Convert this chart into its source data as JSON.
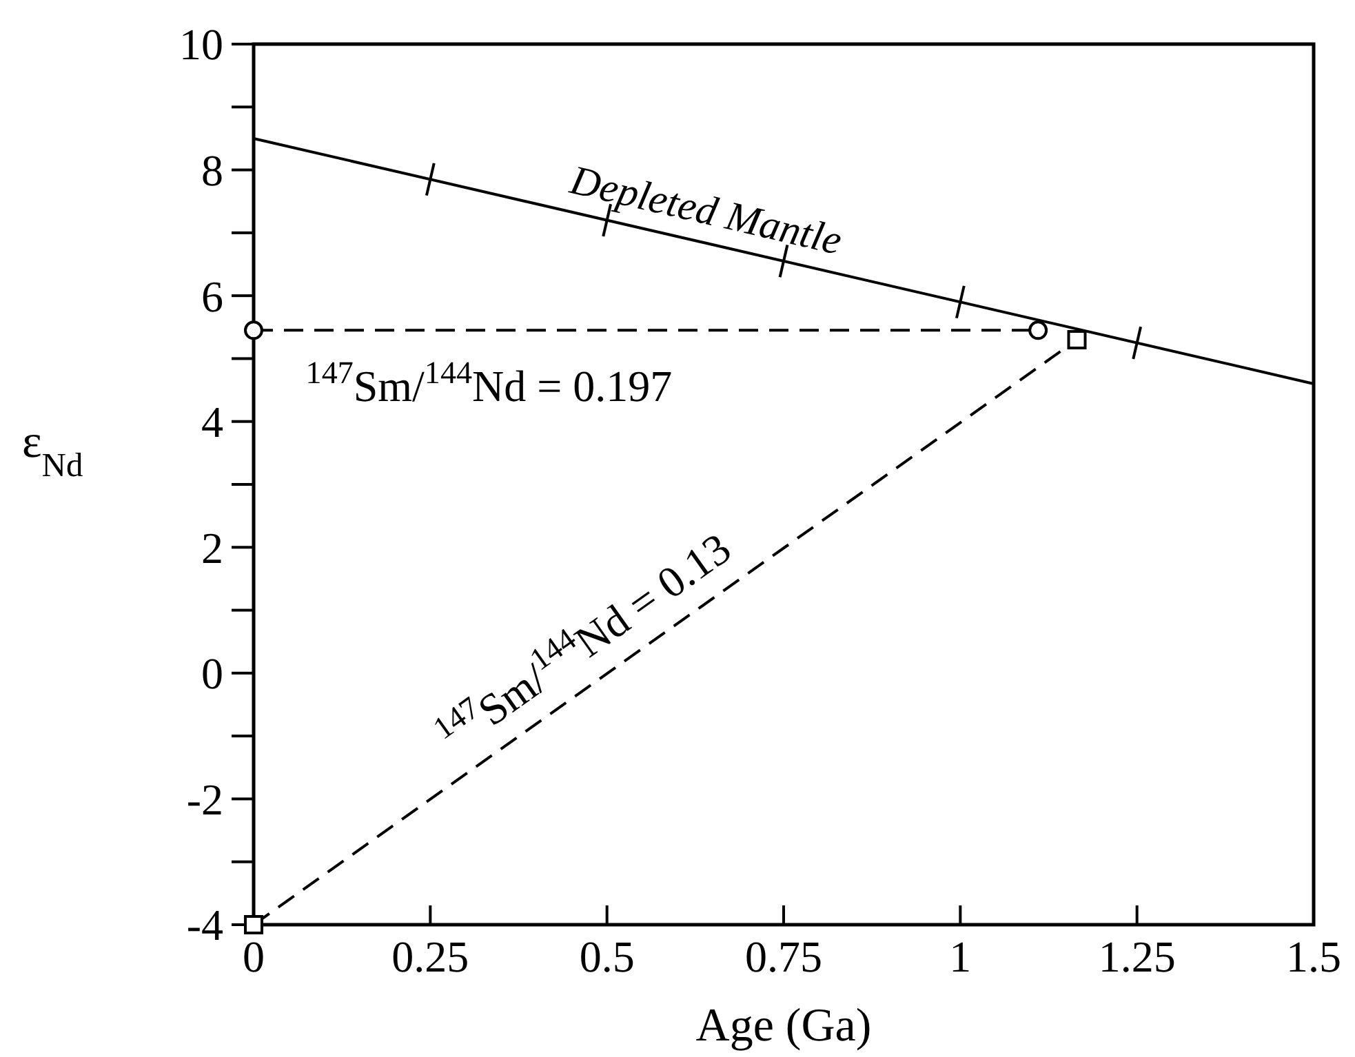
{
  "chart_data": {
    "type": "line",
    "xlabel": "Age (Ga)",
    "ylabel": "ε$_{Nd}$",
    "xlim": [
      0,
      1.5
    ],
    "xticks": [
      0,
      0.25,
      0.5,
      0.75,
      1,
      1.25,
      1.5
    ],
    "ylim": [
      -4,
      10
    ],
    "yticks": [
      -4,
      {
        "value": -3,
        "label": null
      },
      -2,
      {
        "value": -1,
        "label": null
      },
      0,
      {
        "value": 1,
        "label": null
      },
      2,
      {
        "value": 3,
        "label": null
      },
      4,
      {
        "value": 5,
        "label": null
      },
      6,
      {
        "value": 7,
        "label": null
      },
      8,
      {
        "value": 9,
        "label": null
      },
      10
    ],
    "grid": false,
    "annotations": [
      "Depleted Mantle",
      "$^{147}$Sm/$^{144}$Nd = 0.197",
      "$^{147}$Sm/$^{144}$Nd = 0.13"
    ],
    "series": [
      {
        "color": "#000000",
        "x": [
          0,
          1.5
        ],
        "values": [
          8.5,
          4.6
        ],
        "line_style": "solid",
        "marker": "none"
      },
      {
        "color": "#000000",
        "x": [
          0,
          1.11
        ],
        "values": [
          5.45,
          5.45
        ],
        "line_style": "dashed",
        "marker": "circle"
      },
      {
        "color": "#000000",
        "x": [
          0,
          1.165
        ],
        "values": [
          -4,
          5.3
        ],
        "line_style": "dashed",
        "marker": "square"
      }
    ]
  }
}
